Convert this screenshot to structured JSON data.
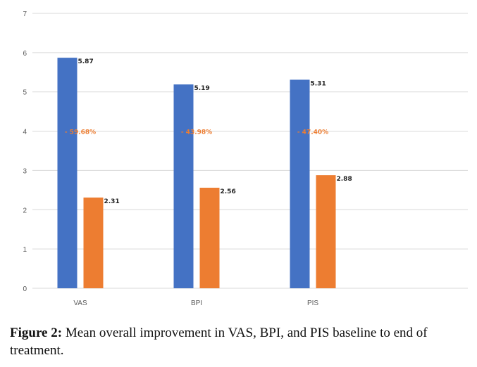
{
  "chart_data": {
    "type": "bar",
    "categories": [
      "VAS",
      "BPI",
      "PIS"
    ],
    "series": [
      {
        "values": [
          5.87,
          5.19,
          5.31
        ],
        "color": "#4472C4"
      },
      {
        "values": [
          2.31,
          2.56,
          2.88
        ],
        "color": "#ED7D31"
      }
    ],
    "value_labels": [
      [
        "5.87",
        "5.19",
        "5.31"
      ],
      [
        "2.31",
        "2.56",
        "2.88"
      ]
    ],
    "annotations": [
      "- 59.68%",
      "- 43.98%",
      "- 47.40%"
    ],
    "annotation_color": "#ED7D31",
    "ylim": [
      0,
      7
    ],
    "yticks": [
      0,
      1,
      2,
      3,
      4,
      5,
      6,
      7
    ],
    "grid": true,
    "gridline_color": "#D9D9D9",
    "title": "",
    "xlabel": "",
    "ylabel": ""
  },
  "caption": {
    "label": "Figure 2:",
    "text": " Mean overall improvement in VAS, BPI, and PIS baseline to end of treatment."
  }
}
